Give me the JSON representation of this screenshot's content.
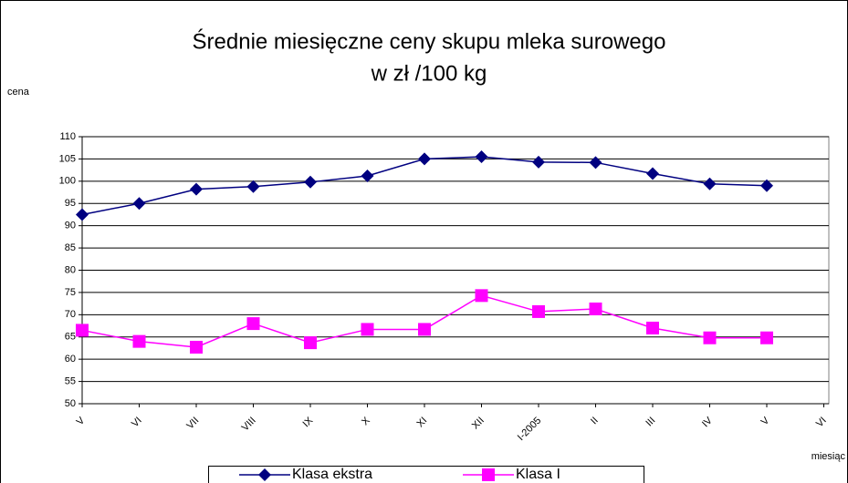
{
  "chart_data": {
    "type": "line",
    "title": [
      "Średnie miesięczne ceny skupu mleka surowego",
      "w zł /100 kg"
    ],
    "y_label": "cena",
    "x_label": "miesiąc",
    "categories": [
      "V",
      "VI",
      "VII",
      "VIII",
      "IX",
      "X",
      "XI",
      "XII",
      "I-2005",
      "II",
      "III",
      "IV",
      "V",
      "VI"
    ],
    "series": [
      {
        "name": "Klasa ekstra",
        "color": "#000080",
        "marker": "diamond",
        "values": [
          92.5,
          95,
          98.2,
          98.8,
          99.8,
          101.2,
          105,
          105.5,
          104.3,
          104.2,
          101.7,
          99.4,
          99,
          null
        ]
      },
      {
        "name": "Klasa I",
        "color": "#ff00ff",
        "marker": "square",
        "values": [
          66.5,
          64,
          62.7,
          68,
          63.7,
          66.7,
          66.7,
          74.3,
          70.7,
          71.3,
          67,
          64.8,
          64.8,
          null
        ]
      }
    ],
    "ylim": [
      50,
      110
    ],
    "yticks": [
      50,
      55,
      60,
      65,
      70,
      75,
      80,
      85,
      90,
      95,
      100,
      105,
      110
    ],
    "grid": true,
    "legend": "bottom"
  }
}
